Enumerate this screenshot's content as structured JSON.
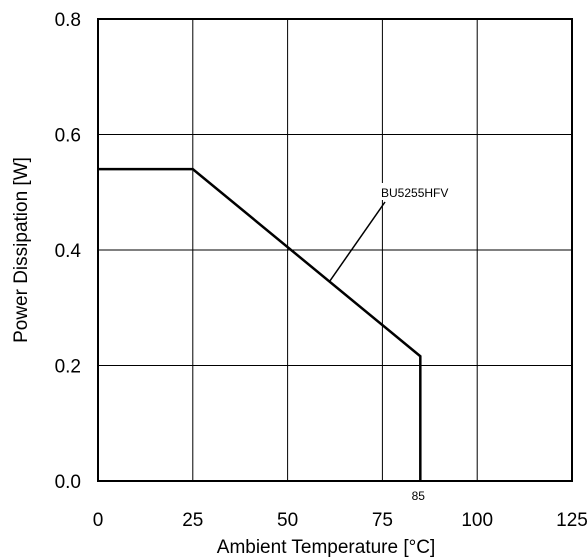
{
  "chart_data": {
    "type": "line",
    "title": "",
    "xlabel": "Ambient Temperature [°C]",
    "ylabel": "Power Dissipation [W]",
    "xlim": [
      0,
      125
    ],
    "ylim": [
      0,
      0.8
    ],
    "x_ticks": [
      0,
      25,
      50,
      75,
      100,
      125
    ],
    "x_tick_labels": [
      "0",
      "25",
      "50",
      "75",
      "100",
      "125"
    ],
    "y_ticks": [
      0,
      0.2,
      0.4,
      0.6,
      0.8
    ],
    "y_tick_labels": [
      "0.0",
      "0.2",
      "0.4",
      "0.6",
      "0.8"
    ],
    "grid": true,
    "series": [
      {
        "name": "BU5255HFV",
        "x": [
          0,
          25,
          85,
          85
        ],
        "y": [
          0.54,
          0.54,
          0.216,
          0
        ]
      }
    ],
    "annotations": [
      {
        "text": "BU5255HFV",
        "kind": "series-callout",
        "x": 61,
        "y": 0.345
      },
      {
        "text": "85",
        "kind": "x-marker",
        "x": 85,
        "y": 0
      }
    ],
    "colors": {
      "line": "#000000",
      "grid": "#000000",
      "background": "#ffffff"
    }
  }
}
